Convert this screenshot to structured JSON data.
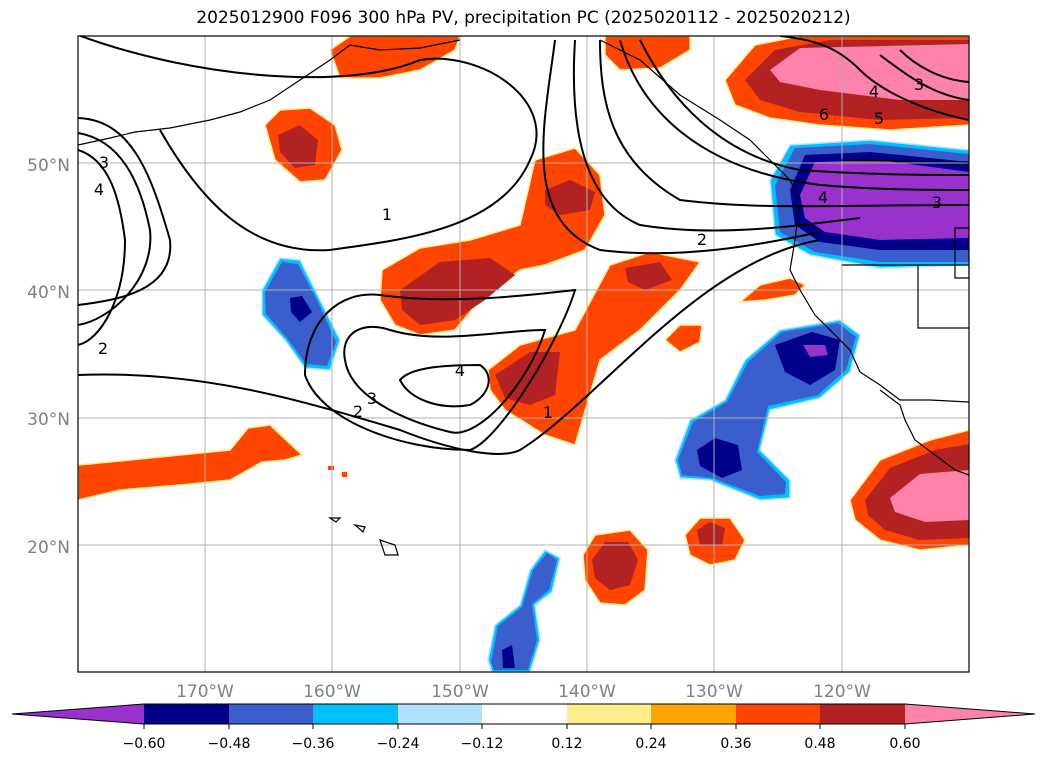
{
  "title": "2025012900 F096 300 hPa PV, precipitation PC (2025020112 - 2025020212)",
  "map": {
    "lat_ticks": [
      "20°N",
      "30°N",
      "40°N",
      "50°N"
    ],
    "lon_ticks": [
      "170°W",
      "160°W",
      "150°W",
      "140°W",
      "130°W",
      "120°W"
    ],
    "contour_labels": [
      "3",
      "4",
      "2",
      "1",
      "4",
      "3",
      "2",
      "1",
      "2",
      "4",
      "3",
      "4",
      "5",
      "6",
      "3"
    ]
  },
  "colorbar": {
    "ticks": [
      "−0.60",
      "−0.48",
      "−0.36",
      "−0.24",
      "−0.12",
      "0.12",
      "0.24",
      "0.36",
      "0.48",
      "0.60"
    ],
    "colors": [
      "#9932cc",
      "#00008b",
      "#3a5fcd",
      "#00bfff",
      "#b0e2ff",
      "#ffffff",
      "#ffec8b",
      "#ffa500",
      "#ff4500",
      "#b22222",
      "#ff82ab"
    ]
  }
}
